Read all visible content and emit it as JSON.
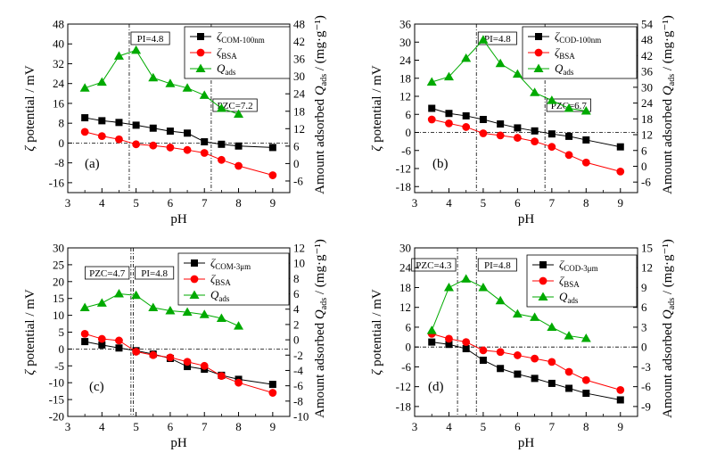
{
  "chart_data": [
    {
      "type": "line",
      "panel_label": "(a)",
      "xlabel": "pH",
      "ylabel": "ζ potential / mV",
      "y2label_prefix": "Amount adsorbed ",
      "y2label_sym": "Q",
      "y2label_sub": "ads",
      "y2label_suffix": " / (mg·g⁻¹)",
      "xlim": [
        3,
        9.5
      ],
      "xticks": [
        3,
        4,
        5,
        6,
        7,
        8,
        9
      ],
      "ylim": [
        -20,
        48
      ],
      "yticks": [
        -16,
        -8,
        0,
        8,
        16,
        24,
        32,
        40,
        48
      ],
      "y2lim": [
        -10,
        48
      ],
      "y2ticks": [
        -6,
        0,
        6,
        12,
        18,
        24,
        30,
        36,
        42,
        48
      ],
      "annotations": [
        {
          "text": "PI=4.8",
          "x": 4.8
        },
        {
          "text": "PZC=7.2",
          "x": 7.2
        }
      ],
      "series": [
        {
          "name_main": "ζ",
          "name_sub": "COM-100nm",
          "axis": "left",
          "marker": "square",
          "color": "#000000",
          "x": [
            3.5,
            4,
            4.5,
            5,
            5.5,
            6,
            6.5,
            7,
            7.5,
            8,
            9
          ],
          "y": [
            10.2,
            9,
            8.3,
            7.2,
            6,
            4.8,
            4,
            0.5,
            -0.5,
            -1.2,
            -1.8
          ]
        },
        {
          "name_main": "ζ",
          "name_sub": "BSA",
          "axis": "left",
          "marker": "circle",
          "color": "#ff0000",
          "x": [
            3.5,
            4,
            4.5,
            5,
            5.5,
            6,
            6.5,
            7,
            7.5,
            8,
            9
          ],
          "y": [
            4.5,
            2.8,
            1.5,
            -0.5,
            -1,
            -1.8,
            -2.8,
            -4,
            -6.8,
            -9.2,
            -13
          ]
        },
        {
          "name_main": "Q",
          "name_sub": "ads",
          "axis": "right",
          "marker": "triangle",
          "color": "#00aa00",
          "x": [
            3.5,
            4,
            4.5,
            5,
            5.5,
            6,
            6.5,
            7,
            7.5,
            8
          ],
          "y": [
            26,
            28,
            37,
            39,
            29.5,
            27.5,
            26,
            23.5,
            19,
            17
          ]
        }
      ]
    },
    {
      "type": "line",
      "panel_label": "(b)",
      "xlabel": "pH",
      "ylabel": "ζ potential / mV",
      "y2label_prefix": "Amount adsorbed ",
      "y2label_sym": "Q",
      "y2label_sub": "ads",
      "y2label_suffix": " / (mg·g⁻¹)",
      "xlim": [
        3,
        9.5
      ],
      "xticks": [
        3,
        4,
        5,
        6,
        7,
        8,
        9
      ],
      "ylim": [
        -20,
        36
      ],
      "yticks": [
        -18,
        -12,
        -6,
        0,
        6,
        12,
        18,
        24,
        30,
        36
      ],
      "y2lim": [
        -10,
        54
      ],
      "y2ticks": [
        -6,
        0,
        6,
        12,
        18,
        24,
        30,
        36,
        42,
        48,
        54
      ],
      "annotations": [
        {
          "text": "PI=4.8",
          "x": 4.8
        },
        {
          "text": "PZC=6.7",
          "x": 6.8
        }
      ],
      "series": [
        {
          "name_main": "ζ",
          "name_sub": "COD-100nm",
          "axis": "left",
          "marker": "square",
          "color": "#000000",
          "x": [
            3.5,
            4,
            4.5,
            5,
            5.5,
            6,
            6.5,
            7,
            7.5,
            8,
            9
          ],
          "y": [
            8,
            6.3,
            5.5,
            4.3,
            2.8,
            1.5,
            0.5,
            -0.5,
            -1.3,
            -2.5,
            -4.8
          ]
        },
        {
          "name_main": "ζ",
          "name_sub": "BSA",
          "axis": "left",
          "marker": "circle",
          "color": "#ff0000",
          "x": [
            3.5,
            4,
            4.5,
            5,
            5.5,
            6,
            6.5,
            7,
            7.5,
            8,
            9
          ],
          "y": [
            4.3,
            3,
            1.8,
            -0.3,
            -1,
            -1.8,
            -3,
            -4.8,
            -7.5,
            -10,
            -13
          ]
        },
        {
          "name_main": "Q",
          "name_sub": "ads",
          "axis": "right",
          "marker": "triangle",
          "color": "#00aa00",
          "x": [
            3.5,
            4,
            4.5,
            5,
            5.5,
            6,
            6.5,
            7,
            7.5,
            8
          ],
          "y": [
            32,
            34,
            41,
            48,
            39,
            35,
            28,
            25,
            22,
            21
          ]
        }
      ]
    },
    {
      "type": "line",
      "panel_label": "(c)",
      "xlabel": "pH",
      "ylabel": "ζ potential / mV",
      "y2label_prefix": "Amount adsorbed ",
      "y2label_sym": "Q",
      "y2label_sub": "ads",
      "y2label_suffix": " / (mg·g⁻¹)",
      "xlim": [
        3,
        9.5
      ],
      "xticks": [
        3,
        4,
        5,
        6,
        7,
        8,
        9
      ],
      "ylim": [
        -20,
        30
      ],
      "yticks": [
        -20,
        -15,
        -10,
        -5,
        0,
        5,
        10,
        15,
        20,
        25,
        30
      ],
      "y2lim": [
        -10,
        12
      ],
      "y2ticks": [
        -10,
        -8,
        -6,
        -4,
        -2,
        0,
        2,
        4,
        6,
        8,
        10,
        12
      ],
      "annotations": [
        {
          "text": "PZC=4.7",
          "x": 4.85
        },
        {
          "text": "PI=4.8",
          "x": 4.92
        }
      ],
      "series": [
        {
          "name_main": "ζ",
          "name_sub": "COM-3μm",
          "axis": "left",
          "marker": "square",
          "color": "#000000",
          "x": [
            3.5,
            4,
            4.5,
            5,
            5.5,
            6,
            6.5,
            7,
            7.5,
            8,
            9
          ],
          "y": [
            2.2,
            1.2,
            0.3,
            -0.5,
            -1.5,
            -2.8,
            -5.2,
            -6,
            -7.8,
            -9,
            -10.5
          ]
        },
        {
          "name_main": "ζ",
          "name_sub": "BSA",
          "axis": "left",
          "marker": "circle",
          "color": "#ff0000",
          "x": [
            3.5,
            4,
            4.5,
            5,
            5.5,
            6,
            6.5,
            7,
            7.5,
            8,
            9
          ],
          "y": [
            4.5,
            3,
            2.5,
            -0.8,
            -1.8,
            -2.5,
            -3.8,
            -5,
            -8,
            -10,
            -13
          ]
        },
        {
          "name_main": "Q",
          "name_sub": "ads",
          "axis": "right",
          "marker": "triangle",
          "color": "#00aa00",
          "x": [
            3.5,
            4,
            4.5,
            5,
            5.5,
            6,
            6.5,
            7,
            7.5,
            8
          ],
          "y": [
            4.2,
            4.8,
            6,
            5.8,
            4.2,
            3.8,
            3.6,
            3.3,
            2.8,
            1.8
          ]
        }
      ]
    },
    {
      "type": "line",
      "panel_label": "(d)",
      "xlabel": "pH",
      "ylabel": "ζ potential / mV",
      "y2label_prefix": "Amount adsorbed ",
      "y2label_sym": "Q",
      "y2label_sub": "ads",
      "y2label_suffix": " / (mg·g⁻¹)",
      "xlim": [
        3,
        9.5
      ],
      "xticks": [
        3,
        4,
        5,
        6,
        7,
        8,
        9
      ],
      "ylim": [
        -21,
        30
      ],
      "yticks": [
        -18,
        -12,
        -6,
        0,
        6,
        12,
        18,
        24,
        30
      ],
      "y2lim": [
        -10.5,
        15
      ],
      "y2ticks": [
        -9,
        -6,
        -3,
        0,
        3,
        6,
        9,
        12,
        15
      ],
      "annotations": [
        {
          "text": "PZC=4.3",
          "x": 4.25
        },
        {
          "text": "PI=4.8",
          "x": 4.8
        }
      ],
      "series": [
        {
          "name_main": "ζ",
          "name_sub": "COD-3μm",
          "axis": "left",
          "marker": "square",
          "color": "#000000",
          "x": [
            3.5,
            4,
            4.5,
            5,
            5.5,
            6,
            6.5,
            7,
            7.5,
            8,
            9
          ],
          "y": [
            1.5,
            0.8,
            -0.5,
            -4,
            -6.5,
            -8.2,
            -9.5,
            -11,
            -12.5,
            -14,
            -16
          ]
        },
        {
          "name_main": "ζ",
          "name_sub": "BSA",
          "axis": "left",
          "marker": "circle",
          "color": "#ff0000",
          "x": [
            3.5,
            4,
            4.5,
            5,
            5.5,
            6,
            6.5,
            7,
            7.5,
            8,
            9
          ],
          "y": [
            4,
            2.5,
            1.5,
            -1,
            -1.5,
            -2.5,
            -3.5,
            -4.5,
            -7.5,
            -10,
            -13
          ]
        },
        {
          "name_main": "Q",
          "name_sub": "ads",
          "axis": "right",
          "marker": "triangle",
          "color": "#00aa00",
          "x": [
            3.5,
            4,
            4.5,
            5,
            5.5,
            6,
            6.5,
            7,
            7.5,
            8
          ],
          "y": [
            2.5,
            9,
            10.3,
            9,
            7,
            5,
            4.5,
            3,
            1.7,
            1.3
          ]
        }
      ]
    }
  ]
}
